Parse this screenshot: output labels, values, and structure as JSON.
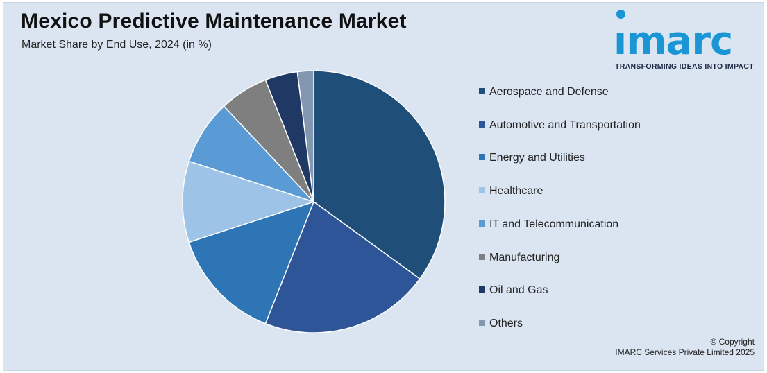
{
  "header": {
    "title": "Mexico Predictive Maintenance Market",
    "subtitle": "Market Share by End Use, 2024 (in %)"
  },
  "logo": {
    "word": "ımarc",
    "tagline": "TRANSFORMING IDEAS INTO IMPACT",
    "color": "#1a96d4"
  },
  "footer": {
    "copyright_line1": "© Copyright",
    "copyright_line2": "IMARC Services Private Limited 2025"
  },
  "chart_data": {
    "type": "pie",
    "title": "Mexico Predictive Maintenance Market",
    "subtitle": "Market Share by End Use, 2024 (in %)",
    "legend_position": "right",
    "start_angle_deg": 0,
    "direction": "clockwise",
    "slices": [
      {
        "label": "Aerospace and Defense",
        "value": 35,
        "color": "#1f4e79"
      },
      {
        "label": "Automotive and Transportation",
        "value": 21,
        "color": "#2e5597"
      },
      {
        "label": "Energy and Utilities",
        "value": 14,
        "color": "#2e75b6"
      },
      {
        "label": "Healthcare",
        "value": 10,
        "color": "#9dc3e6"
      },
      {
        "label": "IT and Telecommunication",
        "value": 8,
        "color": "#5b9bd5"
      },
      {
        "label": "Manufacturing",
        "value": 6,
        "color": "#7f7f7f"
      },
      {
        "label": "Oil and Gas",
        "value": 4,
        "color": "#203864"
      },
      {
        "label": "Others",
        "value": 2,
        "color": "#8497b0"
      }
    ]
  }
}
